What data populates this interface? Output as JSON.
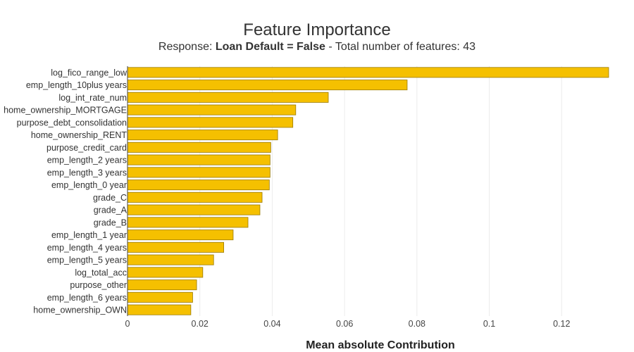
{
  "chart_data": {
    "type": "bar",
    "orientation": "horizontal",
    "title": "Feature Importance",
    "subtitle": {
      "prefix": "Response: ",
      "bold": "Loan Default = False",
      "suffix": " - Total number of features: 43"
    },
    "xlabel": "Mean absolute Contribution",
    "ylabel": "",
    "xlim": [
      0,
      0.133
    ],
    "xticks": [
      0,
      0.02,
      0.04,
      0.06,
      0.08,
      0.1,
      0.12
    ],
    "xtick_labels": [
      "0",
      "0.02",
      "0.04",
      "0.06",
      "0.08",
      "0.1",
      "0.12"
    ],
    "grid": true,
    "bar_color": "#f5c000",
    "categories": [
      "log_fico_range_low",
      "emp_length_10plus years",
      "log_int_rate_num",
      "home_ownership_MORTGAGE",
      "purpose_debt_consolidation",
      "home_ownership_RENT",
      "purpose_credit_card",
      "emp_length_2 years",
      "emp_length_3 years",
      "emp_length_0 year",
      "grade_C",
      "grade_A",
      "grade_B",
      "emp_length_1 year",
      "emp_length_4 years",
      "emp_length_5 years",
      "log_total_acc",
      "purpose_other",
      "emp_length_6 years",
      "home_ownership_OWN"
    ],
    "values": [
      0.133,
      0.0773,
      0.0555,
      0.0465,
      0.0457,
      0.0415,
      0.0396,
      0.0394,
      0.0394,
      0.0392,
      0.0372,
      0.0366,
      0.0333,
      0.0292,
      0.0266,
      0.0238,
      0.0208,
      0.0191,
      0.018,
      0.0175
    ]
  }
}
